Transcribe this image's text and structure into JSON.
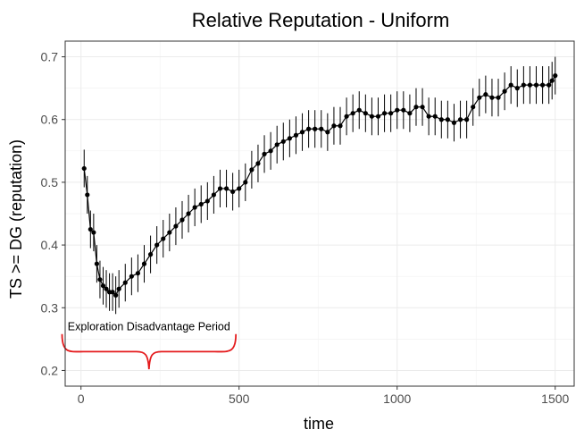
{
  "chart_data": {
    "type": "line",
    "title": "Relative Reputation - Uniform",
    "xlabel": "time",
    "ylabel": "TS  >=  DG (reputation)",
    "xlim": [
      -50,
      1560
    ],
    "ylim": [
      0.175,
      0.725
    ],
    "x_ticks": [
      0,
      500,
      1000,
      1500
    ],
    "x_tick_labels": [
      "0",
      "500",
      "1000",
      "1500"
    ],
    "y_ticks": [
      0.2,
      0.3,
      0.4,
      0.5,
      0.6,
      0.7
    ],
    "y_tick_labels": [
      "0.2",
      "0.3",
      "0.4",
      "0.5",
      "0.6",
      "0.7"
    ],
    "grid": true,
    "annotation": {
      "text": "Exploration Disadvantage Period",
      "brace_x_range": [
        -60,
        490
      ],
      "brace_y": 0.23,
      "brace_top_y": 0.258,
      "brace_tip_y": 0.202,
      "color": "#e41a1c"
    },
    "series": [
      {
        "error_bar_halfwidth": 0.03,
        "keypoints": [
          [
            10,
            0.522
          ],
          [
            20,
            0.48
          ],
          [
            30,
            0.425
          ],
          [
            40,
            0.42
          ],
          [
            50,
            0.37
          ],
          [
            60,
            0.345
          ],
          [
            70,
            0.335
          ],
          [
            80,
            0.33
          ],
          [
            90,
            0.325
          ],
          [
            100,
            0.325
          ],
          [
            110,
            0.32
          ],
          [
            120,
            0.33
          ],
          [
            140,
            0.34
          ],
          [
            160,
            0.35
          ],
          [
            180,
            0.355
          ],
          [
            200,
            0.37
          ],
          [
            220,
            0.385
          ],
          [
            240,
            0.4
          ],
          [
            260,
            0.41
          ],
          [
            280,
            0.42
          ],
          [
            300,
            0.43
          ],
          [
            320,
            0.44
          ],
          [
            340,
            0.45
          ],
          [
            360,
            0.46
          ],
          [
            380,
            0.465
          ],
          [
            400,
            0.47
          ],
          [
            420,
            0.48
          ],
          [
            440,
            0.49
          ],
          [
            460,
            0.49
          ],
          [
            480,
            0.485
          ],
          [
            500,
            0.49
          ],
          [
            520,
            0.5
          ],
          [
            540,
            0.52
          ],
          [
            560,
            0.53
          ],
          [
            580,
            0.545
          ],
          [
            600,
            0.55
          ],
          [
            620,
            0.56
          ],
          [
            640,
            0.565
          ],
          [
            660,
            0.57
          ],
          [
            680,
            0.575
          ],
          [
            700,
            0.58
          ],
          [
            720,
            0.585
          ],
          [
            740,
            0.585
          ],
          [
            760,
            0.585
          ],
          [
            780,
            0.58
          ],
          [
            800,
            0.59
          ],
          [
            820,
            0.59
          ],
          [
            840,
            0.605
          ],
          [
            860,
            0.61
          ],
          [
            880,
            0.615
          ],
          [
            900,
            0.61
          ],
          [
            920,
            0.605
          ],
          [
            940,
            0.605
          ],
          [
            960,
            0.61
          ],
          [
            980,
            0.61
          ],
          [
            1000,
            0.615
          ],
          [
            1020,
            0.615
          ],
          [
            1040,
            0.61
          ],
          [
            1060,
            0.62
          ],
          [
            1080,
            0.62
          ],
          [
            1100,
            0.605
          ],
          [
            1120,
            0.605
          ],
          [
            1140,
            0.6
          ],
          [
            1160,
            0.6
          ],
          [
            1180,
            0.595
          ],
          [
            1200,
            0.6
          ],
          [
            1220,
            0.6
          ],
          [
            1240,
            0.62
          ],
          [
            1260,
            0.635
          ],
          [
            1280,
            0.64
          ],
          [
            1300,
            0.635
          ],
          [
            1320,
            0.635
          ],
          [
            1340,
            0.645
          ],
          [
            1360,
            0.655
          ],
          [
            1380,
            0.65
          ],
          [
            1400,
            0.655
          ],
          [
            1420,
            0.655
          ],
          [
            1440,
            0.655
          ],
          [
            1460,
            0.655
          ],
          [
            1480,
            0.655
          ],
          [
            1490,
            0.662
          ],
          [
            1500,
            0.67
          ]
        ]
      }
    ]
  }
}
